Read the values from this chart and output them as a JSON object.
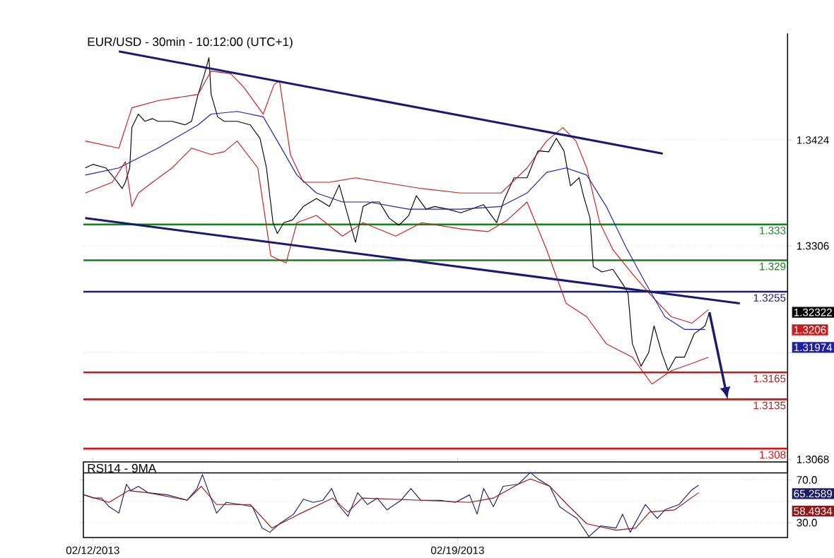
{
  "chart_data": [
    {
      "type": "line",
      "title": "EUR/USD - 30min - 10:12:00 (UTC+1)",
      "xlim": [
        "2013-02-11T19:40",
        "2013-02-25T08:00"
      ],
      "ylim": [
        1.3053,
        1.3543
      ],
      "tick_labels": "y",
      "grid": "y",
      "yticks": [
        1.3068,
        {
          "value": 1.3187,
          "label": null
        },
        1.3306,
        1.3424
      ],
      "series": [
        {
          "color": "#000000",
          "x": [
            "2013-02-11T20:30",
            "2013-02-12T00:00",
            "2013-02-12T06:00",
            "2013-02-12T10:30",
            "2013-02-12T13:30",
            "2013-02-12T15:00",
            "2013-02-12T17:00",
            "2013-02-12T18:00",
            "2013-02-12T21:00",
            "2013-02-13T00:00",
            "2013-02-13T03:30",
            "2013-02-13T06:00",
            "2013-02-13T12:30",
            "2013-02-13T18:30",
            "2013-02-13T21:30",
            "2013-02-14T00:30",
            "2013-02-14T03:30",
            "2013-02-14T05:30",
            "2013-02-14T06:30",
            "2013-02-14T09:30",
            "2013-02-14T12:30",
            "2013-02-14T18:30",
            "2013-02-15T00:30",
            "2013-02-15T05:00",
            "2013-02-15T08:00",
            "2013-02-15T11:00",
            "2013-02-15T13:00",
            "2013-02-15T16:00",
            "2013-02-15T20:00",
            "2013-02-16T01:00",
            "2013-02-16T07:00",
            "2013-02-16T13:00",
            "2013-02-16T17:30",
            "2013-02-16T21:00",
            "2013-02-17T01:00",
            "2013-02-17T04:30",
            "2013-02-17T08:30",
            "2013-02-17T12:00",
            "2013-02-17T16:30",
            "2013-02-17T21:00",
            "2013-02-18T01:30",
            "2013-02-18T05:00",
            "2013-02-18T09:30",
            "2013-02-18T13:30",
            "2013-02-18T19:30",
            "2013-02-19T01:30",
            "2013-02-19T12:00",
            "2013-02-19T18:00",
            "2013-02-19T21:30",
            "2013-02-20T02:00",
            "2013-02-20T08:00",
            "2013-02-20T13:00",
            "2013-02-20T18:00",
            "2013-02-20T21:30",
            "2013-02-21T01:00",
            "2013-02-21T04:00",
            "2013-02-21T08:00",
            "2013-02-21T10:00",
            "2013-02-21T13:00",
            "2013-02-21T14:30",
            "2013-02-21T18:30",
            "2013-02-21T23:30",
            "2013-02-22T04:30",
            "2013-02-22T06:30",
            "2013-02-22T08:30",
            "2013-02-22T12:30",
            "2013-02-22T16:00",
            "2013-02-22T18:30",
            "2013-02-22T22:00",
            "2013-02-23T01:00",
            "2013-02-23T04:30",
            "2013-02-23T08:30",
            "2013-02-23T13:00",
            "2013-02-23T18:00",
            "2013-02-23T20:00"
          ],
          "values": [
            1.3393,
            1.3397,
            1.3393,
            1.338,
            1.337,
            1.3377,
            1.3393,
            1.3438,
            1.3453,
            1.3445,
            1.3448,
            1.3445,
            1.3445,
            1.3441,
            1.3445,
            1.3475,
            1.3498,
            1.3516,
            1.3475,
            1.345,
            1.3445,
            1.3445,
            1.3441,
            1.3426,
            1.3393,
            1.3332,
            1.332,
            1.3332,
            1.3335,
            1.335,
            1.3359,
            1.335,
            1.3374,
            1.3344,
            1.331,
            1.335,
            1.3355,
            1.3355,
            1.3337,
            1.3329,
            1.334,
            1.3362,
            1.3347,
            1.335,
            1.3347,
            1.3343,
            1.3352,
            1.3332,
            1.3358,
            1.3382,
            1.3382,
            1.3412,
            1.3411,
            1.3426,
            1.3412,
            1.3373,
            1.3382,
            1.3362,
            1.3337,
            1.3283,
            1.3277,
            1.328,
            1.3262,
            1.3253,
            1.3197,
            1.3172,
            1.3187,
            1.3217,
            1.3187,
            1.3167,
            1.3182,
            1.3182,
            1.3208,
            1.3217,
            1.3232
          ]
        },
        {
          "color": "#c02020",
          "x": [
            "2013-02-11T20:30",
            "2013-02-12T12:00",
            "2013-02-12T18:00",
            "2013-02-13T06:00",
            "2013-02-14T00:30",
            "2013-02-14T06:30",
            "2013-02-14T15:30",
            "2013-02-14T21:30",
            "2013-02-15T06:30",
            "2013-02-15T11:30",
            "2013-02-15T14:00",
            "2013-02-15T19:00",
            "2013-02-16T01:00",
            "2013-02-16T13:00",
            "2013-02-17T01:00",
            "2013-02-17T13:30",
            "2013-02-18T07:30",
            "2013-02-19T01:30",
            "2013-02-19T20:00",
            "2013-02-20T08:00",
            "2013-02-20T17:00",
            "2013-02-21T00:30",
            "2013-02-21T06:30",
            "2013-02-21T11:30",
            "2013-02-21T17:30",
            "2013-02-21T23:30",
            "2013-02-22T08:30",
            "2013-02-22T17:30",
            "2013-02-23T02:30",
            "2013-02-23T12:00",
            "2013-02-23T19:30"
          ],
          "values": [
            1.3423,
            1.3415,
            1.346,
            1.3468,
            1.3475,
            1.3501,
            1.3498,
            1.3483,
            1.3453,
            1.3486,
            1.349,
            1.3408,
            1.3377,
            1.3377,
            1.3382,
            1.3377,
            1.337,
            1.3365,
            1.3365,
            1.3393,
            1.3423,
            1.3438,
            1.3423,
            1.3393,
            1.3332,
            1.3302,
            1.3275,
            1.325,
            1.3227,
            1.322,
            1.3235
          ]
        },
        {
          "color": "#2020a0",
          "x": [
            "2013-02-11T20:30",
            "2013-02-12T12:00",
            "2013-02-13T06:00",
            "2013-02-14T00:30",
            "2013-02-14T06:30",
            "2013-02-14T18:30",
            "2013-02-15T06:30",
            "2013-02-15T13:00",
            "2013-02-15T22:00",
            "2013-02-16T07:00",
            "2013-02-16T19:00",
            "2013-02-17T07:00",
            "2013-02-18T01:30",
            "2013-02-19T01:30",
            "2013-02-19T20:00",
            "2013-02-20T08:00",
            "2013-02-20T17:00",
            "2013-02-21T02:00",
            "2013-02-21T11:30",
            "2013-02-21T20:30",
            "2013-02-22T05:30",
            "2013-02-22T14:30",
            "2013-02-22T23:30",
            "2013-02-23T08:30",
            "2013-02-23T18:00"
          ],
          "values": [
            1.3385,
            1.3393,
            1.3415,
            1.3441,
            1.3453,
            1.3456,
            1.345,
            1.3423,
            1.3385,
            1.3365,
            1.3355,
            1.3355,
            1.3347,
            1.3347,
            1.335,
            1.3365,
            1.3388,
            1.3393,
            1.3385,
            1.335,
            1.3305,
            1.3265,
            1.3227,
            1.3213,
            1.3213
          ]
        },
        {
          "color": "#c02020",
          "x": [
            "2013-02-11T20:30",
            "2013-02-12T09:00",
            "2013-02-12T15:00",
            "2013-02-12T18:00",
            "2013-02-12T21:00",
            "2013-02-13T03:30",
            "2013-02-13T12:30",
            "2013-02-13T21:30",
            "2013-02-14T06:30",
            "2013-02-14T12:30",
            "2013-02-14T18:30",
            "2013-02-15T04:00",
            "2013-02-15T10:00",
            "2013-02-15T17:00",
            "2013-02-15T22:00",
            "2013-02-16T07:00",
            "2013-02-16T19:00",
            "2013-02-17T04:30",
            "2013-02-17T19:30",
            "2013-02-18T07:30",
            "2013-02-19T01:30",
            "2013-02-19T14:00",
            "2013-02-19T23:00",
            "2013-02-20T08:00",
            "2013-02-20T17:00",
            "2013-02-21T02:00",
            "2013-02-21T11:30",
            "2013-02-21T20:30",
            "2013-02-22T08:30",
            "2013-02-22T17:30",
            "2013-02-23T02:30",
            "2013-02-23T12:00",
            "2013-02-23T19:30"
          ],
          "values": [
            1.3365,
            1.3377,
            1.34,
            1.335,
            1.3365,
            1.3377,
            1.3393,
            1.3415,
            1.3408,
            1.3411,
            1.3423,
            1.3393,
            1.3295,
            1.3287,
            1.3332,
            1.334,
            1.3317,
            1.3332,
            1.3317,
            1.3332,
            1.3325,
            1.3322,
            1.3335,
            1.3355,
            1.3302,
            1.3242,
            1.3227,
            1.3197,
            1.3182,
            1.3152,
            1.3167,
            1.3175,
            1.3182
          ]
        },
        {
          "type": "line",
          "color": "#1a1a70",
          "x": [
            "2013-02-12T12:00",
            "2013-02-22T22:30"
          ],
          "values": [
            1.3523,
            1.3409
          ]
        },
        {
          "type": "line",
          "color": "#1a1a70",
          "x": [
            "2013-02-11T20:30",
            "2013-02-24T10:00"
          ],
          "values": [
            1.3337,
            1.3242
          ]
        }
      ],
      "ref_lines": [
        {
          "axis": "y",
          "value": 1.333,
          "label": "1.333",
          "color": "#1a8020"
        },
        {
          "axis": "y",
          "value": 1.329,
          "label": "1.329",
          "color": "#1a8020"
        },
        {
          "axis": "y",
          "value": 1.3255,
          "label": "1.3255",
          "color": "#1c1c7a"
        },
        {
          "axis": "y",
          "value": 1.3165,
          "label": "1.3165",
          "color": "#a02828"
        },
        {
          "axis": "y",
          "value": 1.3135,
          "label": "1.3135",
          "color": "#a02828"
        },
        {
          "axis": "y",
          "value": 1.308,
          "label": "1.308",
          "color": "#d01818"
        }
      ],
      "annotations": [
        "1.32322",
        "1.3206",
        "1.31974"
      ]
    },
    {
      "type": "line",
      "title": "RSI14 - 9MA",
      "xlim": [
        "2013-02-11T19:40",
        "2013-02-25T08:00"
      ],
      "ylim": [
        16.2,
        86.8
      ],
      "grid": "y",
      "xticks": [
        {
          "value": "2013-02-12",
          "label": "02/12/2013"
        },
        {
          "value": "2013-02-19",
          "label": "02/19/2013"
        }
      ],
      "yticks": [
        {
          "value": 30,
          "label": "30.0"
        },
        {
          "value": 50,
          "label": null
        },
        {
          "value": 70,
          "label": "70.0"
        }
      ],
      "series": [
        {
          "color": "#1c1c6a",
          "x": [
            "2013-02-11T20:00",
            "2013-02-12T00:30",
            "2013-02-12T04:00",
            "2013-02-12T07:30",
            "2013-02-12T12:00",
            "2013-02-12T15:30",
            "2013-02-12T17:30",
            "2013-02-12T21:00",
            "2013-02-13T01:30",
            "2013-02-13T10:30",
            "2013-02-13T19:30",
            "2013-02-14T00:00",
            "2013-02-14T02:30",
            "2013-02-14T05:30",
            "2013-02-14T09:00",
            "2013-02-14T13:30",
            "2013-02-14T20:00",
            "2013-02-15T01:30",
            "2013-02-15T06:00",
            "2013-02-15T09:30",
            "2013-02-15T14:00",
            "2013-02-15T20:30",
            "2013-02-16T01:00",
            "2013-02-16T05:30",
            "2013-02-16T10:00",
            "2013-02-16T14:00",
            "2013-02-16T17:00",
            "2013-02-16T21:30",
            "2013-02-17T02:00",
            "2013-02-17T06:30",
            "2013-02-17T11:00",
            "2013-02-17T15:30",
            "2013-02-17T22:00",
            "2013-02-18T02:30",
            "2013-02-18T07:00",
            "2013-02-18T16:00",
            "2013-02-18T23:00",
            "2013-02-19T05:30",
            "2013-02-19T09:00",
            "2013-02-19T12:00",
            "2013-02-19T16:30",
            "2013-02-19T21:00",
            "2013-02-20T04:00",
            "2013-02-20T09:30",
            "2013-02-20T13:00",
            "2013-02-20T18:30",
            "2013-02-20T23:00",
            "2013-02-21T02:30",
            "2013-02-21T07:00",
            "2013-02-21T12:30",
            "2013-02-21T18:00",
            "2013-02-22T01:00",
            "2013-02-22T04:00",
            "2013-02-22T07:30",
            "2013-02-22T14:30",
            "2013-02-22T20:00",
            "2013-02-22T23:30",
            "2013-02-23T06:00",
            "2013-02-23T11:30",
            "2013-02-23T15:00"
          ],
          "values": [
            56,
            53,
            53,
            45,
            39,
            66,
            60,
            64,
            58,
            56,
            51,
            62,
            75,
            58,
            39,
            49,
            47,
            45,
            25,
            21,
            29,
            38,
            52,
            49,
            51,
            62,
            47,
            36,
            58,
            47,
            53,
            42,
            51,
            62,
            51,
            51,
            49,
            56,
            38,
            62,
            45,
            64,
            66,
            77,
            71,
            64,
            45,
            40,
            34,
            17,
            27,
            25,
            38,
            21,
            47,
            34,
            42,
            47,
            60,
            65
          ]
        },
        {
          "color": "#8b1a1a",
          "x": [
            "2013-02-11T20:00",
            "2013-02-12T07:30",
            "2013-02-12T16:30",
            "2013-02-13T01:30",
            "2013-02-13T19:30",
            "2013-02-14T02:00",
            "2013-02-14T09:00",
            "2013-02-15T00:30",
            "2013-02-15T10:30",
            "2013-02-15T23:00",
            "2013-02-16T14:30",
            "2013-02-16T21:30",
            "2013-02-17T04:00",
            "2013-02-18T07:00",
            "2013-02-19T05:30",
            "2013-02-19T16:30",
            "2013-02-20T04:00",
            "2013-02-20T09:30",
            "2013-02-20T18:30",
            "2013-02-21T02:30",
            "2013-02-21T11:30",
            "2013-02-22T01:00",
            "2013-02-22T10:00",
            "2013-02-22T16:30",
            "2013-02-23T04:00",
            "2013-02-23T15:00"
          ],
          "values": [
            56,
            49,
            60,
            58,
            51,
            64,
            47,
            47,
            25,
            38,
            53,
            40,
            53,
            51,
            49,
            53,
            66,
            71,
            64,
            47,
            29,
            23,
            25,
            40,
            42,
            58
          ]
        }
      ],
      "annotations": [
        "65.2589",
        "58.4934"
      ]
    }
  ]
}
